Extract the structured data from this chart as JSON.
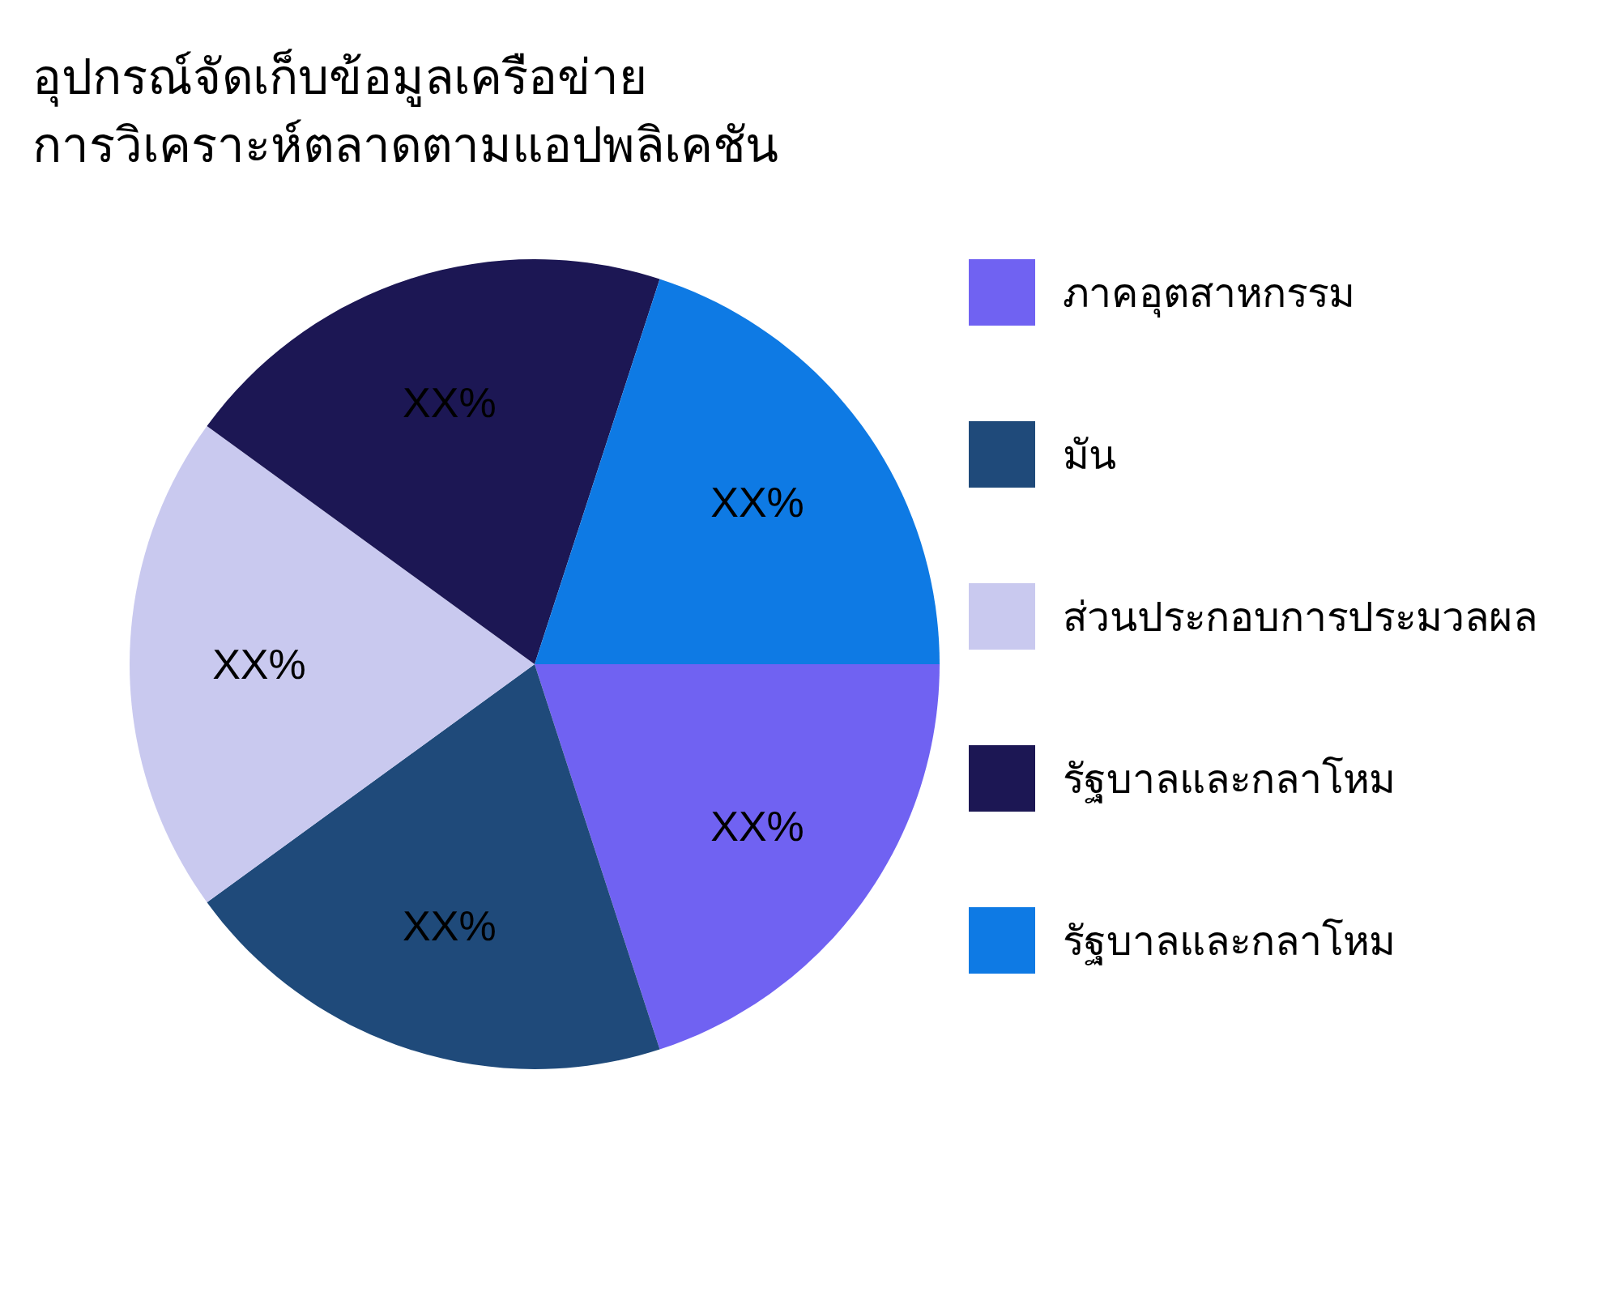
{
  "chart_data": {
    "type": "pie",
    "title": "อุปกรณ์จัดเก็บข้อมูลเครือข่าย\nการวิเคราะห์ตลาดตามแอปพลิเคชัน",
    "categories": [
      "ภาคอุตสาหกรรม",
      "มัน",
      "ส่วนประกอบการประมวลผล",
      "รัฐบาลและกลาโหม",
      "รัฐบาลและกลาโหม"
    ],
    "values": [
      20,
      20,
      20,
      20,
      20
    ],
    "colors": [
      "#7062f2",
      "#1f4a7a",
      "#c9c9ef",
      "#1c1754",
      "#0e7ae4"
    ],
    "value_labels": [
      "XX%",
      "XX%",
      "XX%",
      "XX%",
      "XX%"
    ],
    "legend": "right"
  }
}
